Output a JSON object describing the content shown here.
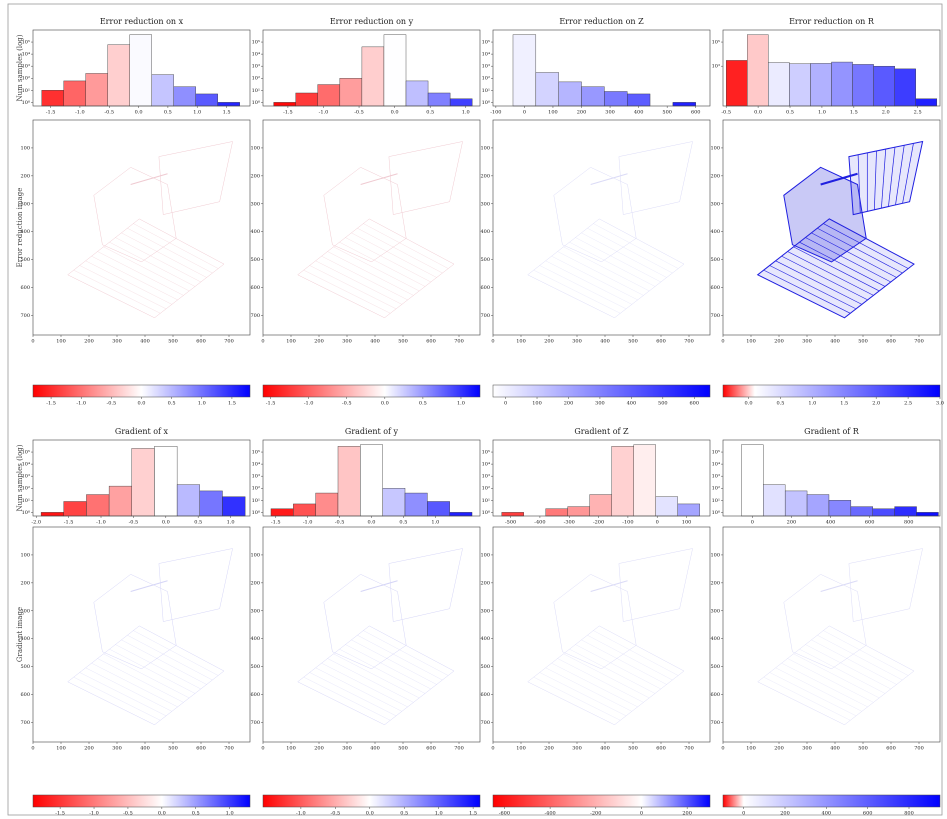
{
  "row_labels": {
    "hist": "Num samples (log)",
    "error_image": "Error reduction image",
    "gradient_image": "Gradient image"
  },
  "image_axis": {
    "xlim": [
      0,
      775
    ],
    "ylim": [
      0,
      770
    ],
    "xticks": [
      0,
      100,
      200,
      300,
      400,
      500,
      600,
      700
    ],
    "yticks": [
      100,
      200,
      300,
      400,
      500,
      600,
      700
    ]
  },
  "chart_data": [
    {
      "type": "histogram",
      "title": "Error reduction on x",
      "log_y": true,
      "bins": [
        -1.65,
        -1.275,
        -0.9,
        -0.525,
        -0.15,
        0.225,
        0.6,
        0.975,
        1.35,
        1.725
      ],
      "values": [
        10,
        60,
        250,
        60000,
        400000,
        200,
        20,
        5,
        1
      ],
      "xlim": [
        -1.8,
        1.9
      ],
      "xticks": [
        -1.5,
        {
          "value": -1,
          "label": "-1.0"
        },
        -0.5,
        {
          "value": 0,
          "label": "0.0"
        },
        0.5,
        {
          "value": 1,
          "label": "1.0"
        },
        1.5
      ],
      "ylim": [
        0.5,
        1000000
      ],
      "yticks": [
        {
          "value": 1,
          "label": "10⁰"
        },
        {
          "value": 10,
          "label": "10¹"
        },
        {
          "value": 100,
          "label": "10²"
        },
        {
          "value": 1000,
          "label": "10³"
        },
        {
          "value": 10000,
          "label": "10⁴"
        },
        {
          "value": 100000,
          "label": "10⁵"
        }
      ],
      "colorbar": {
        "lim": [
          -1.8,
          1.8
        ],
        "stops": [
          -1.8,
          0,
          1.8
        ],
        "colors": [
          "#ff0000",
          "#ffffff",
          "#0000ff"
        ],
        "ticks": [
          -1.5,
          {
            "value": -1,
            "label": "-1.0"
          },
          -0.5,
          {
            "value": 0,
            "label": "0.0"
          },
          0.5,
          {
            "value": 1,
            "label": "1.0"
          },
          1.5
        ]
      }
    },
    {
      "type": "histogram",
      "title": "Error reduction on y",
      "log_y": true,
      "bins": [
        -1.7,
        -1.39,
        -1.08,
        -0.77,
        -0.46,
        -0.15,
        0.16,
        0.47,
        0.78,
        1.09
      ],
      "values": [
        1,
        6,
        30,
        100,
        40000,
        400000,
        60,
        6,
        2
      ],
      "xlim": [
        -1.85,
        1.2
      ],
      "xticks": [
        -1.5,
        {
          "value": -1,
          "label": "-1.0"
        },
        -0.5,
        {
          "value": 0,
          "label": "0.0"
        },
        0.5,
        {
          "value": 1,
          "label": "1.0"
        }
      ],
      "ylim": [
        0.5,
        1000000
      ],
      "yticks": [
        {
          "value": 1,
          "label": "10⁰"
        },
        {
          "value": 10,
          "label": "10¹"
        },
        {
          "value": 100,
          "label": "10²"
        },
        {
          "value": 1000,
          "label": "10³"
        },
        {
          "value": 10000,
          "label": "10⁴"
        },
        {
          "value": 100000,
          "label": "10⁵"
        }
      ],
      "colorbar": {
        "lim": [
          -1.6,
          1.25
        ],
        "stops": [
          -1.6,
          0,
          1.25
        ],
        "colors": [
          "#ff0000",
          "#ffffff",
          "#0000ff"
        ],
        "ticks": [
          -1.5,
          {
            "value": -1,
            "label": "-1.0"
          },
          -0.5,
          {
            "value": 0,
            "label": "0.0"
          },
          0.5,
          {
            "value": 1,
            "label": "1.0"
          }
        ]
      }
    },
    {
      "type": "histogram",
      "title": "Error reduction on Z",
      "log_y": true,
      "bins": [
        -40,
        40,
        120,
        200,
        280,
        360,
        440,
        520,
        600
      ],
      "values": [
        400000,
        300,
        50,
        20,
        8,
        5,
        0,
        1
      ],
      "xlim": [
        -110,
        650
      ],
      "xticks": [
        -100,
        0,
        100,
        200,
        300,
        400,
        500,
        600
      ],
      "ylim": [
        0.5,
        1000000
      ],
      "yticks": [
        {
          "value": 1,
          "label": "10⁰"
        },
        {
          "value": 10,
          "label": "10¹"
        },
        {
          "value": 100,
          "label": "10²"
        },
        {
          "value": 1000,
          "label": "10³"
        },
        {
          "value": 10000,
          "label": "10⁴"
        },
        {
          "value": 100000,
          "label": "10⁵"
        }
      ],
      "colorbar": {
        "lim": [
          -40,
          650
        ],
        "stops": [
          -40,
          650
        ],
        "colors": [
          "#ffffff",
          "#0000ff"
        ],
        "ticks": [
          0,
          100,
          200,
          300,
          400,
          500,
          600
        ]
      }
    },
    {
      "type": "histogram",
      "title": "Error reduction on R",
      "log_y": true,
      "bins": [
        -0.5,
        -0.17,
        0.16,
        0.49,
        0.82,
        1.15,
        1.48,
        1.81,
        2.14,
        2.47,
        2.8
      ],
      "values": [
        3000,
        400000,
        2000,
        1600,
        1700,
        2200,
        1400,
        1000,
        600,
        2
      ],
      "xlim": [
        -0.55,
        2.85
      ],
      "xticks": [
        -0.5,
        {
          "value": 0,
          "label": "0.0"
        },
        0.5,
        {
          "value": 1,
          "label": "1.0"
        },
        1.5,
        {
          "value": 2,
          "label": "2.0"
        },
        2.5
      ],
      "ylim": [
        0.5,
        1000000
      ],
      "yticks": [
        {
          "value": 1000,
          "label": "10³"
        },
        {
          "value": 100000,
          "label": "10⁵"
        }
      ],
      "colorbar": {
        "lim": [
          -0.4,
          3
        ],
        "stops": [
          -0.4,
          0.1,
          3
        ],
        "colors": [
          "#ff0000",
          "#ffffff",
          "#0000ff"
        ],
        "ticks": [
          {
            "value": 0,
            "label": "0.0"
          },
          0.5,
          {
            "value": 1,
            "label": "1.0"
          },
          1.5,
          {
            "value": 2,
            "label": "2.0"
          },
          2.5,
          {
            "value": 3,
            "label": "3.0"
          }
        ]
      }
    },
    {
      "type": "histogram",
      "title": "Gradient of x",
      "log_y": true,
      "bins": [
        -1.925,
        -1.575,
        -1.225,
        -0.875,
        -0.525,
        -0.175,
        0.175,
        0.525,
        0.875,
        1.225
      ],
      "values": [
        1,
        8,
        30,
        150,
        200000,
        300000,
        200,
        60,
        20
      ],
      "xlim": [
        -2.05,
        1.3
      ],
      "xticks": [
        {
          "value": -2,
          "label": "-2.0"
        },
        -1.5,
        {
          "value": -1,
          "label": "-1.0"
        },
        -0.5,
        {
          "value": 0,
          "label": "0.0"
        },
        0.5,
        {
          "value": 1,
          "label": "1.0"
        }
      ],
      "ylim": [
        0.5,
        1000000
      ],
      "yticks": [
        {
          "value": 1,
          "label": "10⁰"
        },
        {
          "value": 10,
          "label": "10¹"
        },
        {
          "value": 100,
          "label": "10²"
        },
        {
          "value": 1000,
          "label": "10³"
        },
        {
          "value": 10000,
          "label": "10⁴"
        },
        {
          "value": 100000,
          "label": "10⁵"
        }
      ],
      "colorbar": {
        "lim": [
          -1.9,
          1.3
        ],
        "stops": [
          -1.9,
          0,
          1.3
        ],
        "colors": [
          "#ff0000",
          "#ffffff",
          "#0000ff"
        ],
        "ticks": [
          -1.5,
          {
            "value": -1,
            "label": "-1.0"
          },
          -0.5,
          {
            "value": 0,
            "label": "0.0"
          },
          0.5,
          {
            "value": 1,
            "label": "1.0"
          }
        ]
      }
    },
    {
      "type": "histogram",
      "title": "Gradient of y",
      "log_y": true,
      "bins": [
        -1.575,
        -1.225,
        -0.875,
        -0.525,
        -0.175,
        0.175,
        0.525,
        0.875,
        1.225,
        1.575
      ],
      "values": [
        2,
        5,
        40,
        300000,
        400000,
        100,
        40,
        8,
        1
      ],
      "xlim": [
        -1.7,
        1.7
      ],
      "xticks": [
        -1.5,
        {
          "value": -1,
          "label": "-1.0"
        },
        -0.5,
        {
          "value": 0,
          "label": "0.0"
        },
        0.5,
        {
          "value": 1,
          "label": "1.0"
        }
      ],
      "ylim": [
        0.5,
        1000000
      ],
      "yticks": [
        {
          "value": 1,
          "label": "10⁰"
        },
        {
          "value": 10,
          "label": "10¹"
        },
        {
          "value": 100,
          "label": "10²"
        },
        {
          "value": 1000,
          "label": "10³"
        },
        {
          "value": 10000,
          "label": "10⁴"
        },
        {
          "value": 100000,
          "label": "10⁵"
        }
      ],
      "colorbar": {
        "lim": [
          -1.55,
          1.6
        ],
        "stops": [
          -1.55,
          0,
          1.6
        ],
        "colors": [
          "#ff0000",
          "#ffffff",
          "#0000ff"
        ],
        "ticks": [
          {
            "value": -1,
            "label": "-1.0"
          },
          -0.5,
          {
            "value": 0,
            "label": "0.0"
          },
          0.5,
          {
            "value": 1,
            "label": "1.0"
          },
          1.5
        ]
      }
    },
    {
      "type": "histogram",
      "title": "Gradient of Z",
      "log_y": true,
      "bins": [
        -530,
        -455,
        -380,
        -305,
        -230,
        -155,
        -80,
        -5,
        70,
        145
      ],
      "values": [
        1,
        0,
        2,
        3,
        30,
        300000,
        400000,
        20,
        5
      ],
      "xlim": [
        -560,
        180
      ],
      "xticks": [
        -500,
        -400,
        -300,
        -200,
        -100,
        0,
        100
      ],
      "ylim": [
        0.5,
        1000000
      ],
      "yticks": [
        {
          "value": 1,
          "label": "10⁰"
        },
        {
          "value": 10,
          "label": "10¹"
        },
        {
          "value": 100,
          "label": "10²"
        },
        {
          "value": 1000,
          "label": "10³"
        },
        {
          "value": 10000,
          "label": "10⁴"
        },
        {
          "value": 100000,
          "label": "10⁵"
        }
      ],
      "colorbar": {
        "lim": [
          -650,
          300
        ],
        "stops": [
          -650,
          0,
          300
        ],
        "colors": [
          "#ff0000",
          "#ffffff",
          "#0000ff"
        ],
        "ticks": [
          -600,
          -400,
          -200,
          0,
          200
        ]
      }
    },
    {
      "type": "histogram",
      "title": "Gradient of R",
      "log_y": true,
      "bins": [
        -56,
        56,
        168,
        280,
        392,
        504,
        616,
        728,
        840,
        952
      ],
      "values": [
        400000,
        200,
        60,
        30,
        10,
        3,
        2,
        3,
        1
      ],
      "xlim": [
        -150,
        960
      ],
      "xticks": [
        0,
        200,
        400,
        600,
        800
      ],
      "ylim": [
        0.5,
        1000000
      ],
      "yticks": [
        {
          "value": 1,
          "label": "10⁰"
        },
        {
          "value": 10,
          "label": "10¹"
        },
        {
          "value": 100,
          "label": "10²"
        },
        {
          "value": 1000,
          "label": "10³"
        },
        {
          "value": 10000,
          "label": "10⁴"
        },
        {
          "value": 100000,
          "label": "10⁵"
        }
      ],
      "colorbar": {
        "lim": [
          -100,
          950
        ],
        "stops": [
          -100,
          0,
          950
        ],
        "colors": [
          "#ff0000",
          "#ffffff",
          "#0000ff"
        ],
        "ticks": [
          0,
          200,
          400,
          600,
          800
        ]
      }
    }
  ]
}
